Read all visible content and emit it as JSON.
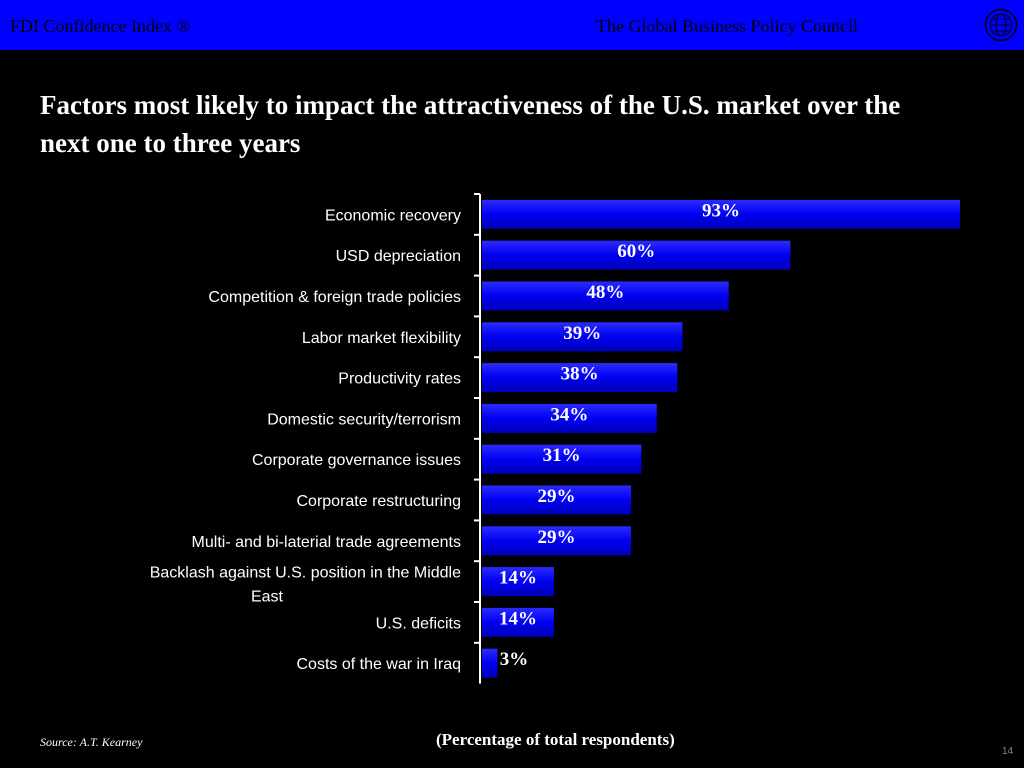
{
  "header": {
    "left_text": "FDI Confidence Index ®",
    "right_text": "The Global Business Policy Council",
    "seal_icon": "globe-seal-icon"
  },
  "slide": {
    "title": "Factors most likely to impact the attractiveness of the U.S. market over the next one to three years",
    "source": "Source: A.T. Kearney",
    "page_number": "14"
  },
  "colors": {
    "header_bg": "#0000ff",
    "bar": "#0000ee",
    "background": "#000000"
  },
  "chart_data": {
    "type": "bar",
    "orientation": "horizontal",
    "categories": [
      "Economic recovery",
      "USD depreciation",
      "Competition & foreign trade policies",
      "Labor market flexibility",
      "Productivity rates",
      "Domestic security/terrorism",
      "Corporate governance issues",
      "Corporate restructuring",
      "Multi- and bi-laterial trade agreements",
      "Backlash against U.S. position in the Middle East",
      "U.S. deficits",
      "Costs of the war in Iraq"
    ],
    "values": [
      93,
      60,
      48,
      39,
      38,
      34,
      31,
      29,
      29,
      14,
      14,
      3
    ],
    "value_labels": [
      "93%",
      "60%",
      "48%",
      "39%",
      "38%",
      "34%",
      "31%",
      "29%",
      "29%",
      "14%",
      "14%",
      "3%"
    ],
    "xlabel": "(Percentage of total respondents)",
    "ylabel": "",
    "xlim": [
      0,
      93
    ],
    "grid": false
  }
}
